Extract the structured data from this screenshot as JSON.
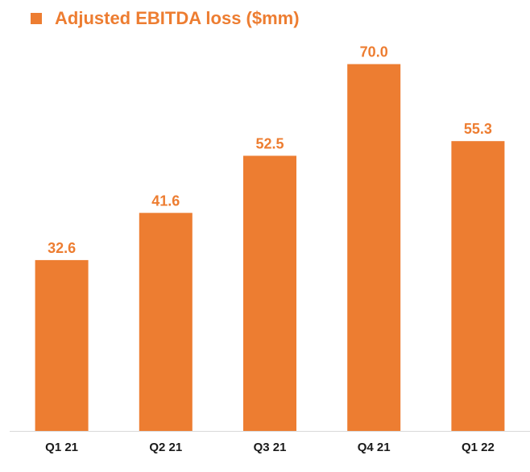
{
  "chart_data": {
    "type": "bar",
    "categories": [
      "Q1 21",
      "Q2 21",
      "Q3 21",
      "Q4 21",
      "Q1 22"
    ],
    "series": [
      {
        "name": "Adjusted EBITDA loss ($mm)",
        "values": [
          32.6,
          41.6,
          52.5,
          70.0,
          55.3
        ]
      }
    ],
    "value_labels": [
      "32.6",
      "41.6",
      "52.5",
      "70.0",
      "55.3"
    ],
    "ylim": [
      0,
      81
    ],
    "grid": false,
    "legend": "top-left",
    "colors": {
      "bar": "#ED7D31",
      "label": "#ED7D31",
      "axis": "#D9D9D9"
    }
  }
}
